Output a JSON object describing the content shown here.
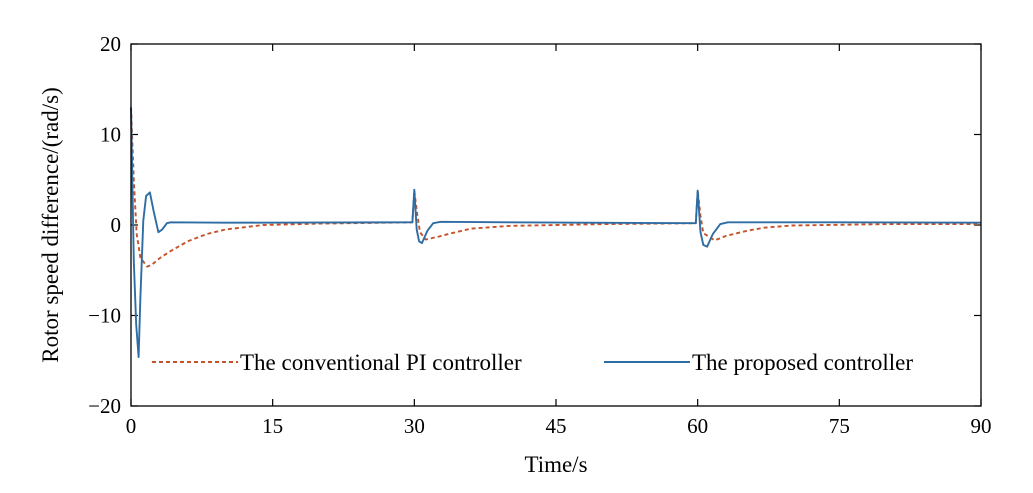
{
  "chart_data": {
    "type": "line",
    "title": "",
    "xlabel": "Time/s",
    "ylabel": "Rotor speed difference/(rad/s)",
    "xlim": [
      0,
      90
    ],
    "ylim": [
      -20,
      20
    ],
    "xticks": [
      0,
      15,
      30,
      45,
      60,
      75,
      90
    ],
    "xtick_labels": [
      "0",
      "15",
      "30",
      "45",
      "60",
      "75",
      "90"
    ],
    "yticks": [
      20,
      10,
      0,
      -10,
      -20
    ],
    "ytick_labels": [
      "20",
      "10",
      "0",
      "−10",
      "−20"
    ],
    "grid": false,
    "legend_position": "bottom",
    "series": [
      {
        "name": "The conventional PI controller",
        "color": "#c5532a",
        "style": "dashed",
        "points": [
          [
            0,
            13.0
          ],
          [
            0.3,
            5.0
          ],
          [
            0.6,
            -1.0
          ],
          [
            1.0,
            -3.6
          ],
          [
            1.7,
            -4.6
          ],
          [
            2.2,
            -4.4
          ],
          [
            3.0,
            -3.7
          ],
          [
            4.0,
            -3.0
          ],
          [
            6.0,
            -1.8
          ],
          [
            8.0,
            -1.0
          ],
          [
            10.0,
            -0.5
          ],
          [
            14.0,
            0.0
          ],
          [
            20.0,
            0.15
          ],
          [
            29.8,
            0.3
          ],
          [
            30.0,
            3.8
          ],
          [
            30.3,
            1.2
          ],
          [
            30.6,
            -0.8
          ],
          [
            31.2,
            -1.6
          ],
          [
            32.5,
            -1.3
          ],
          [
            34.0,
            -0.9
          ],
          [
            36.0,
            -0.4
          ],
          [
            40.0,
            -0.1
          ],
          [
            50.0,
            0.1
          ],
          [
            59.8,
            0.2
          ],
          [
            60.0,
            3.8
          ],
          [
            60.3,
            1.0
          ],
          [
            60.6,
            -0.9
          ],
          [
            61.8,
            -1.7
          ],
          [
            63.0,
            -1.2
          ],
          [
            65.0,
            -0.7
          ],
          [
            67.0,
            -0.3
          ],
          [
            70.0,
            -0.05
          ],
          [
            80.0,
            0.1
          ],
          [
            90.0,
            0.1
          ]
        ]
      },
      {
        "name": "The proposed controller",
        "color": "#2e6da4",
        "style": "solid",
        "points": [
          [
            0,
            13.0
          ],
          [
            0.3,
            -4.0
          ],
          [
            0.55,
            -11.0
          ],
          [
            0.8,
            -14.6
          ],
          [
            1.0,
            -8.0
          ],
          [
            1.3,
            0.5
          ],
          [
            1.6,
            3.2
          ],
          [
            2.0,
            3.6
          ],
          [
            2.4,
            1.5
          ],
          [
            2.9,
            -0.8
          ],
          [
            3.3,
            -0.5
          ],
          [
            3.8,
            0.2
          ],
          [
            4.2,
            0.3
          ],
          [
            10.0,
            0.25
          ],
          [
            29.8,
            0.3
          ],
          [
            30.0,
            3.9
          ],
          [
            30.25,
            -0.5
          ],
          [
            30.5,
            -1.8
          ],
          [
            30.8,
            -2.0
          ],
          [
            31.4,
            -0.6
          ],
          [
            32.0,
            0.2
          ],
          [
            32.8,
            0.35
          ],
          [
            40.0,
            0.3
          ],
          [
            59.8,
            0.2
          ],
          [
            60.0,
            3.8
          ],
          [
            60.3,
            -0.8
          ],
          [
            60.6,
            -2.2
          ],
          [
            61.0,
            -2.4
          ],
          [
            61.6,
            -1.0
          ],
          [
            62.4,
            0.1
          ],
          [
            63.2,
            0.3
          ],
          [
            75.0,
            0.3
          ],
          [
            90.0,
            0.25
          ]
        ]
      }
    ]
  }
}
